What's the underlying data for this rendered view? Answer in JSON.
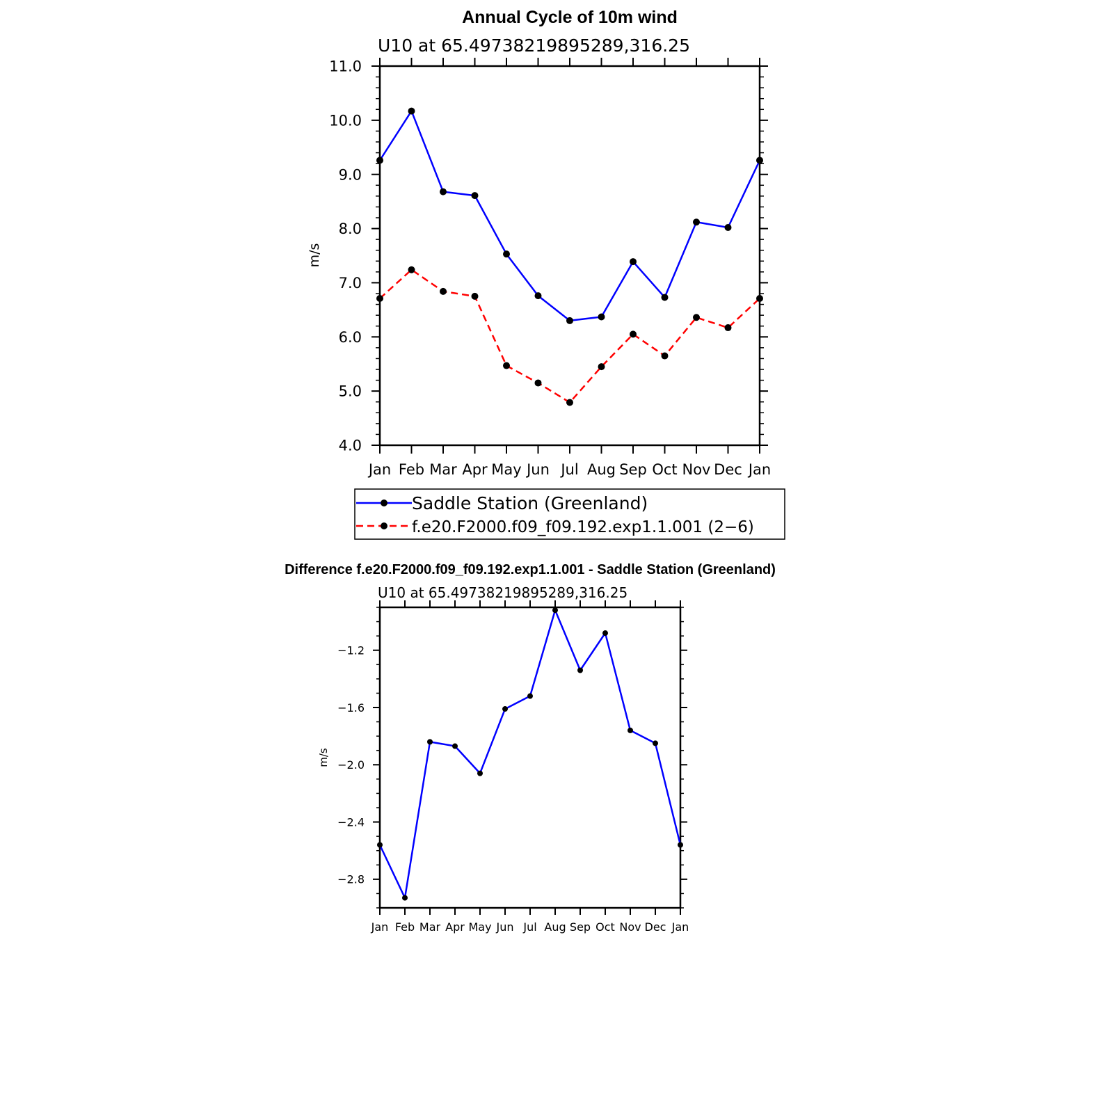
{
  "chart_data": [
    {
      "type": "line",
      "title": "Annual Cycle of 10m wind",
      "subtitle": "U10 at 65.49738219895289,316.25",
      "ylabel": "m/s",
      "xlabel": "",
      "ylim": [
        4.0,
        11.0
      ],
      "yticks": [
        "4.0",
        "5.0",
        "6.0",
        "7.0",
        "8.0",
        "9.0",
        "10.0",
        "11.0"
      ],
      "ytick_values": [
        4,
        5,
        6,
        7,
        8,
        9,
        10,
        11
      ],
      "categories": [
        "Jan",
        "Feb",
        "Mar",
        "Apr",
        "May",
        "Jun",
        "Jul",
        "Aug",
        "Sep",
        "Oct",
        "Nov",
        "Dec",
        "Jan"
      ],
      "series": [
        {
          "name": "Saddle Station (Greenland)",
          "color": "#0000ff",
          "dash": "solid",
          "values": [
            9.26,
            10.17,
            8.68,
            8.61,
            7.53,
            6.76,
            6.3,
            6.37,
            7.39,
            6.73,
            8.12,
            8.02,
            9.26
          ]
        },
        {
          "name": "f.e20.F2000.f09_f09.192.exp1.1.001 (2−6)",
          "color": "#ff0000",
          "dash": "dashed",
          "values": [
            6.71,
            7.24,
            6.84,
            6.75,
            5.47,
            5.15,
            4.79,
            5.45,
            6.05,
            5.65,
            6.36,
            6.17,
            6.71
          ]
        }
      ],
      "legend": "bottom"
    },
    {
      "type": "line",
      "title": "Difference f.e20.F2000.f09_f09.192.exp1.1.001 - Saddle Station (Greenland)",
      "subtitle": "U10 at 65.49738219895289,316.25",
      "ylabel": "m/s",
      "xlabel": "",
      "ylim": [
        -3.0,
        -0.9
      ],
      "yticks": [
        "−2.8",
        "−2.4",
        "−2.0",
        "−1.6",
        "−1.2"
      ],
      "ytick_values": [
        -2.8,
        -2.4,
        -2.0,
        -1.6,
        -1.2
      ],
      "categories": [
        "Jan",
        "Feb",
        "Mar",
        "Apr",
        "May",
        "Jun",
        "Jul",
        "Aug",
        "Sep",
        "Oct",
        "Nov",
        "Dec",
        "Jan"
      ],
      "series": [
        {
          "name": "Difference",
          "color": "#0000ff",
          "dash": "solid",
          "values": [
            -2.56,
            -2.93,
            -1.84,
            -1.87,
            -2.06,
            -1.61,
            -1.52,
            -0.92,
            -1.34,
            -1.08,
            -1.76,
            -1.85,
            -2.56
          ]
        }
      ]
    }
  ]
}
